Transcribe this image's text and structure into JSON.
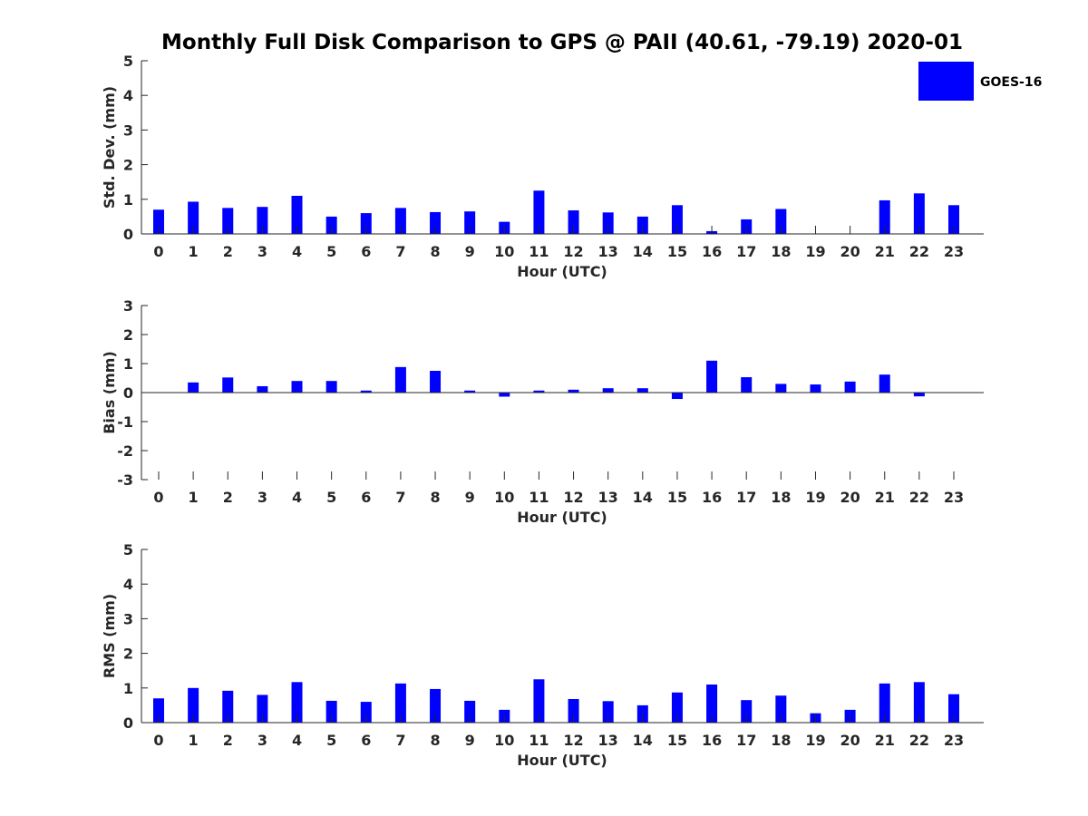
{
  "chart_data": {
    "type": "bar",
    "title": "Monthly Full Disk Comparison to GPS @ PAII (40.61, -79.19) 2020-01",
    "legend": {
      "label": "GOES-16",
      "color": "#0000ff",
      "placement": "top-right"
    },
    "panels": [
      {
        "id": "std",
        "ylabel": "Std. Dev. (mm)",
        "xlabel": "Hour (UTC)",
        "ylim": [
          0,
          5
        ],
        "yticks": [
          0,
          1,
          2,
          3,
          4,
          5
        ],
        "categories": [
          "0",
          "1",
          "2",
          "3",
          "4",
          "5",
          "6",
          "7",
          "8",
          "9",
          "10",
          "11",
          "12",
          "13",
          "14",
          "15",
          "16",
          "17",
          "18",
          "19",
          "20",
          "21",
          "22",
          "23"
        ],
        "values": [
          0.7,
          0.93,
          0.75,
          0.78,
          1.1,
          0.5,
          0.6,
          0.75,
          0.63,
          0.65,
          0.35,
          1.25,
          0.68,
          0.62,
          0.5,
          0.83,
          0.08,
          0.42,
          0.72,
          0.0,
          0.0,
          0.97,
          1.17,
          0.83
        ]
      },
      {
        "id": "bias",
        "ylabel": "Bias (mm)",
        "xlabel": "Hour (UTC)",
        "ylim": [
          -3,
          3
        ],
        "yticks": [
          -3,
          -2,
          -1,
          0,
          1,
          2,
          3
        ],
        "categories": [
          "0",
          "1",
          "2",
          "3",
          "4",
          "5",
          "6",
          "7",
          "8",
          "9",
          "10",
          "11",
          "12",
          "13",
          "14",
          "15",
          "16",
          "17",
          "18",
          "19",
          "20",
          "21",
          "22",
          "23"
        ],
        "values": [
          0.0,
          0.35,
          0.52,
          0.22,
          0.4,
          0.4,
          0.07,
          0.88,
          0.75,
          0.07,
          -0.14,
          0.07,
          0.1,
          0.15,
          0.15,
          -0.22,
          1.1,
          0.53,
          0.3,
          0.28,
          0.38,
          0.62,
          -0.13,
          0.0
        ]
      },
      {
        "id": "rms",
        "ylabel": "RMS (mm)",
        "xlabel": "Hour (UTC)",
        "ylim": [
          0,
          5
        ],
        "yticks": [
          0,
          1,
          2,
          3,
          4,
          5
        ],
        "categories": [
          "0",
          "1",
          "2",
          "3",
          "4",
          "5",
          "6",
          "7",
          "8",
          "9",
          "10",
          "11",
          "12",
          "13",
          "14",
          "15",
          "16",
          "17",
          "18",
          "19",
          "20",
          "21",
          "22",
          "23"
        ],
        "values": [
          0.7,
          1.0,
          0.92,
          0.8,
          1.17,
          0.63,
          0.6,
          1.13,
          0.97,
          0.63,
          0.37,
          1.25,
          0.68,
          0.62,
          0.5,
          0.87,
          1.1,
          0.65,
          0.78,
          0.27,
          0.37,
          1.13,
          1.17,
          0.82
        ]
      }
    ]
  }
}
